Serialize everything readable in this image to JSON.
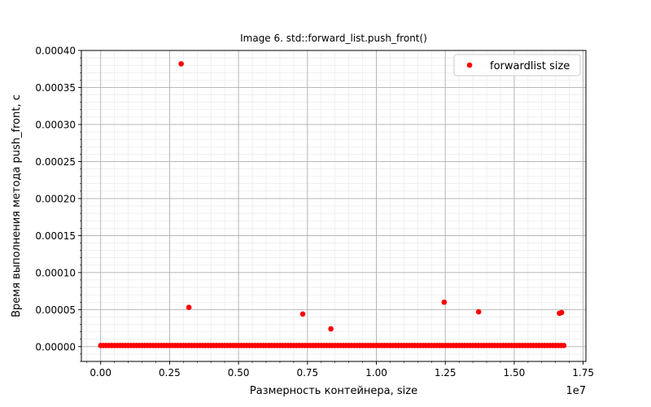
{
  "chart_data": {
    "type": "scatter",
    "title": "Image 6. std::forward_list.push_front()",
    "xlabel": "Размерность контейнера, size",
    "ylabel": "Время выполнения метода push_front, с",
    "x_offset_text": "1e7",
    "xlim": [
      -0.07,
      1.76
    ],
    "ylim": [
      -2e-05,
      0.0004
    ],
    "x_ticks": [
      0.0,
      0.25,
      0.5,
      0.75,
      1.0,
      1.25,
      1.5,
      1.75
    ],
    "x_tick_labels": [
      "0.00",
      "0.25",
      "0.50",
      "0.75",
      "1.00",
      "1.25",
      "1.50",
      "1.75"
    ],
    "y_ticks": [
      0.0,
      5e-05,
      0.0001,
      0.00015,
      0.0002,
      0.00025,
      0.0003,
      0.00035,
      0.0004
    ],
    "y_tick_labels": [
      "0.00000",
      "0.00005",
      "0.00010",
      "0.00015",
      "0.00020",
      "0.00025",
      "0.00030",
      "0.00035",
      "0.00040"
    ],
    "grid": true,
    "minor_grid": true,
    "legend_position": "top-right",
    "series": [
      {
        "name": "forwardlist size",
        "color": "#ff0000",
        "baseline": {
          "x_start": 0.0,
          "x_end": 1.68,
          "step": 0.01,
          "y": 1.5e-06
        },
        "outliers": [
          {
            "x": 0.292,
            "y": 0.000382
          },
          {
            "x": 0.32,
            "y": 5.3e-05
          },
          {
            "x": 0.733,
            "y": 4.4e-05
          },
          {
            "x": 0.835,
            "y": 2.4e-05
          },
          {
            "x": 1.246,
            "y": 6e-05
          },
          {
            "x": 1.371,
            "y": 4.7e-05
          },
          {
            "x": 1.664,
            "y": 4.5e-05
          },
          {
            "x": 1.672,
            "y": 4.6e-05
          }
        ]
      }
    ]
  }
}
